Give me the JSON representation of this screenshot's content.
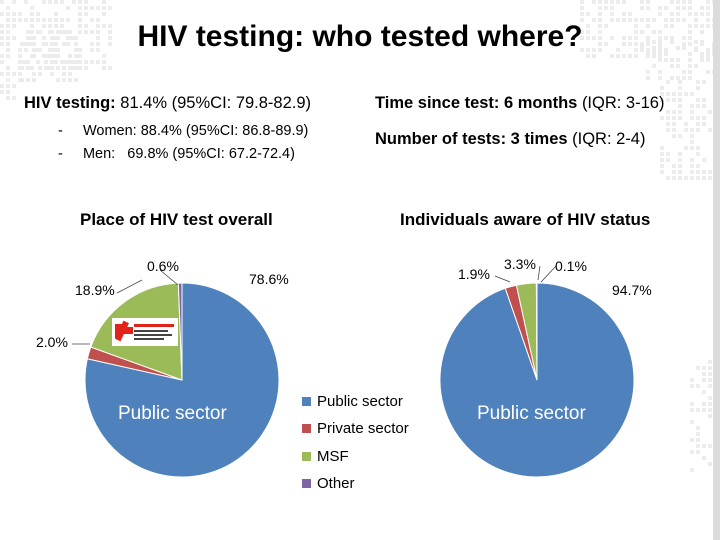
{
  "slide": {
    "title": "HIV testing: who tested where?",
    "left_stats": {
      "main_label": "HIV testing:",
      "main_value": "81.4% (95%CI: 79.8-82.9)",
      "women": "-     Women: 88.4% (95%CI: 86.8-89.9)",
      "men": "-     Men:   69.8% (95%CI: 67.2-72.4)"
    },
    "right_stats": {
      "time_label": "Time since test: 6 months",
      "time_iqr": "(IQR: 3-16)",
      "tests_label": "Number of tests: 3 times",
      "tests_iqr": "(IQR: 2-4)"
    },
    "logo_text": "MSF logo"
  },
  "chart_data": [
    {
      "type": "pie",
      "title": "Place of HIV test overall",
      "categories": [
        "Public sector",
        "Private sector",
        "MSF",
        "Other"
      ],
      "values": [
        78.6,
        2.0,
        18.9,
        0.6
      ],
      "labels": [
        "78.6%",
        "2.0%",
        "18.9%",
        "0.6%"
      ],
      "inner_label": "Public sector",
      "colors": [
        "#4F81BD",
        "#C0504D",
        "#9BBB59",
        "#8064A2"
      ]
    },
    {
      "type": "pie",
      "title": "Individuals aware of HIV status",
      "categories": [
        "Public sector",
        "Private sector",
        "MSF",
        "Other"
      ],
      "values": [
        94.7,
        1.9,
        3.3,
        0.1
      ],
      "labels": [
        "94.7%",
        "1.9%",
        "3.3%",
        "0.1%"
      ],
      "inner_label": "Public sector",
      "colors": [
        "#4F81BD",
        "#C0504D",
        "#9BBB59",
        "#8064A2"
      ]
    }
  ],
  "legend": {
    "placement": "center",
    "items": [
      {
        "label": "Public sector",
        "color": "#4F81BD"
      },
      {
        "label": "Private sector",
        "color": "#C0504D"
      },
      {
        "label": "MSF",
        "color": "#9BBB59"
      },
      {
        "label": "Other",
        "color": "#8064A2"
      }
    ]
  }
}
